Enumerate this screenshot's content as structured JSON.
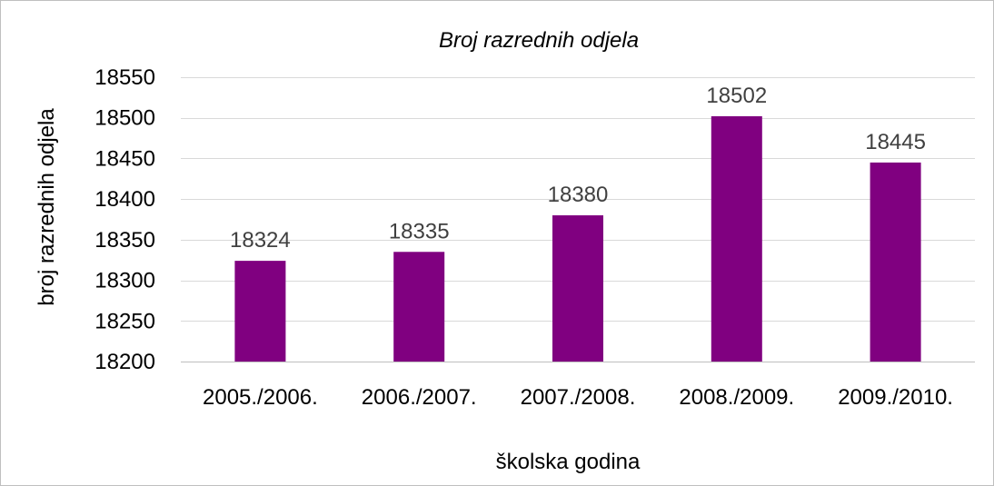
{
  "chart_data": {
    "type": "bar",
    "title": "Broj razrednih odjela",
    "xlabel": "školska godina",
    "ylabel": "broj razrednih odjela",
    "categories": [
      "2005./2006.",
      "2006./2007.",
      "2007./2008.",
      "2008./2009.",
      "2009./2010."
    ],
    "values": [
      18324,
      18335,
      18380,
      18502,
      18445
    ],
    "ylim": [
      18200,
      18550
    ],
    "yticks": [
      18200,
      18250,
      18300,
      18350,
      18400,
      18450,
      18500,
      18550
    ],
    "grid": true,
    "legend": "none",
    "bar_color": "#800080",
    "data_labels": true
  }
}
